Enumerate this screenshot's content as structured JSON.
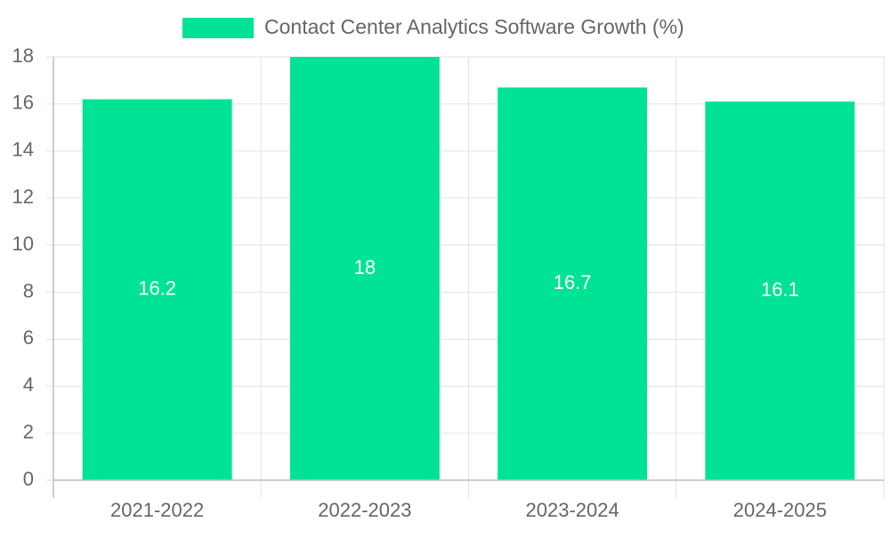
{
  "chart_data": {
    "type": "bar",
    "title": "",
    "legend": {
      "label": "Contact Center Analytics Software Growth (%)",
      "placement": "top-center",
      "swatch_color": "#00e394"
    },
    "categories": [
      "2021-2022",
      "2022-2023",
      "2023-2024",
      "2024-2025"
    ],
    "series": [
      {
        "name": "Contact Center Analytics Software Growth (%)",
        "values": [
          16.2,
          18,
          16.7,
          16.1
        ],
        "color": "#00e394"
      }
    ],
    "data_labels": [
      "16.2",
      "18",
      "16.7",
      "16.1"
    ],
    "y_ticks": [
      "0",
      "2",
      "4",
      "6",
      "8",
      "10",
      "12",
      "14",
      "16",
      "18"
    ],
    "xlabel": "",
    "ylabel": "",
    "ylim": [
      0,
      18
    ],
    "y_step": 2,
    "grid": true,
    "colors": {
      "bar": "#00e394",
      "grid": "#e2e2e2",
      "axis": "#bdbdbd",
      "tick_text": "#666666",
      "data_label": "#ffffff"
    }
  }
}
